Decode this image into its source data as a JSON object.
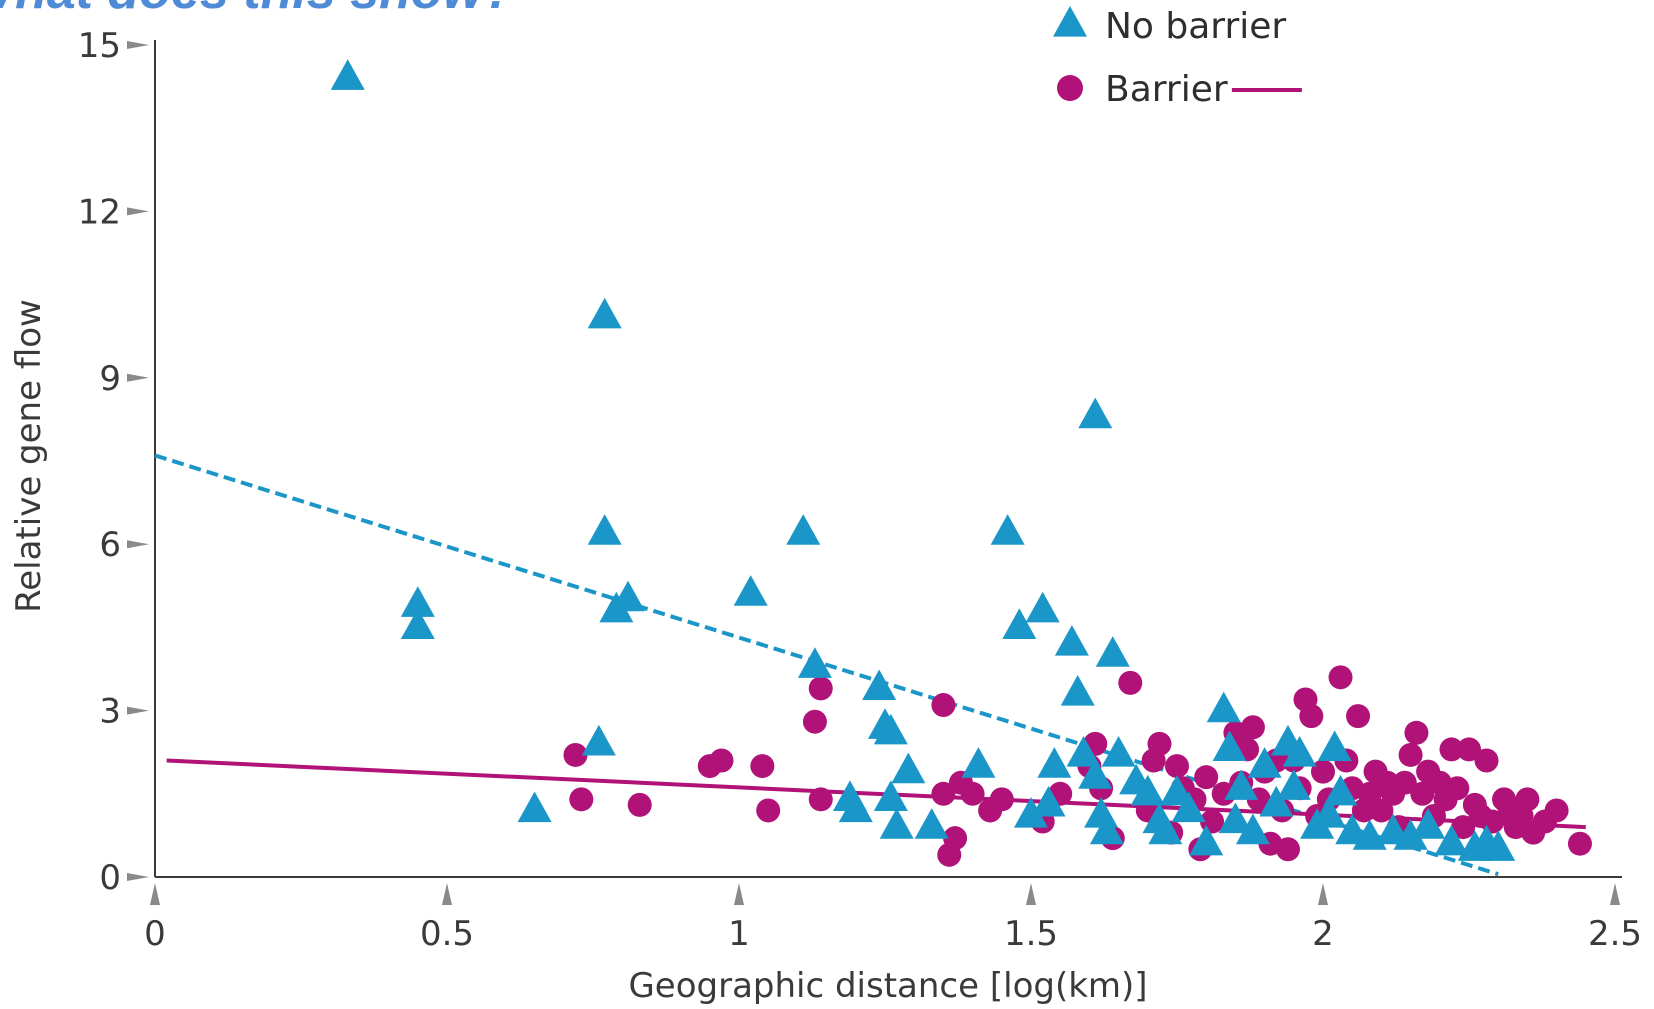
{
  "title": "What does this show?",
  "chart_data": {
    "type": "scatter",
    "xlabel": "Geographic distance [log(km)]",
    "ylabel": "Relative gene flow",
    "xlim": [
      0,
      2.5
    ],
    "ylim": [
      0,
      15
    ],
    "x_ticks": [
      "0",
      "0.5",
      "1",
      "1.5",
      "2",
      "2.5"
    ],
    "y_ticks": [
      "0",
      "3",
      "6",
      "9",
      "12",
      "15"
    ],
    "legend_position": "top-right",
    "series": [
      {
        "name": "No barrier",
        "marker": "triangle",
        "color": "#1a96c8",
        "trendline": {
          "style": "dashed",
          "x": [
            0,
            2.3
          ],
          "y": [
            7.6,
            0.05
          ]
        },
        "points": [
          [
            0.33,
            14.4
          ],
          [
            0.45,
            4.9
          ],
          [
            0.45,
            4.5
          ],
          [
            0.65,
            1.2
          ],
          [
            0.76,
            2.4
          ],
          [
            0.77,
            6.2
          ],
          [
            0.77,
            10.1
          ],
          [
            0.79,
            4.8
          ],
          [
            0.81,
            5.0
          ],
          [
            1.02,
            5.1
          ],
          [
            1.11,
            6.2
          ],
          [
            1.13,
            3.8
          ],
          [
            1.24,
            3.4
          ],
          [
            1.25,
            2.7
          ],
          [
            1.26,
            2.6
          ],
          [
            1.19,
            1.4
          ],
          [
            1.2,
            1.2
          ],
          [
            1.26,
            1.4
          ],
          [
            1.27,
            0.9
          ],
          [
            1.29,
            1.9
          ],
          [
            1.33,
            0.9
          ],
          [
            1.41,
            2.0
          ],
          [
            1.46,
            6.2
          ],
          [
            1.48,
            4.5
          ],
          [
            1.52,
            4.8
          ],
          [
            1.5,
            1.1
          ],
          [
            1.53,
            1.3
          ],
          [
            1.54,
            2.0
          ],
          [
            1.57,
            4.2
          ],
          [
            1.58,
            3.3
          ],
          [
            1.59,
            2.2
          ],
          [
            1.61,
            8.3
          ],
          [
            1.61,
            1.8
          ],
          [
            1.62,
            1.1
          ],
          [
            1.63,
            0.8
          ],
          [
            1.64,
            4.0
          ],
          [
            1.65,
            2.2
          ],
          [
            1.68,
            1.7
          ],
          [
            1.7,
            1.5
          ],
          [
            1.72,
            1.0
          ],
          [
            1.73,
            0.8
          ],
          [
            1.75,
            1.5
          ],
          [
            1.77,
            1.2
          ],
          [
            1.8,
            0.6
          ],
          [
            1.83,
            3.0
          ],
          [
            1.84,
            2.3
          ],
          [
            1.85,
            1.0
          ],
          [
            1.86,
            1.6
          ],
          [
            1.88,
            0.8
          ],
          [
            1.9,
            2.0
          ],
          [
            1.92,
            1.3
          ],
          [
            1.94,
            2.4
          ],
          [
            1.95,
            1.6
          ],
          [
            1.96,
            2.2
          ],
          [
            1.99,
            0.9
          ],
          [
            2.01,
            1.1
          ],
          [
            2.02,
            2.3
          ],
          [
            2.03,
            1.5
          ],
          [
            2.05,
            0.8
          ],
          [
            2.08,
            0.7
          ],
          [
            2.12,
            0.8
          ],
          [
            2.15,
            0.7
          ],
          [
            2.18,
            0.9
          ],
          [
            2.22,
            0.6
          ],
          [
            2.26,
            0.5
          ],
          [
            2.28,
            0.6
          ],
          [
            2.3,
            0.5
          ]
        ]
      },
      {
        "name": "Barrier",
        "marker": "circle",
        "color": "#b01277",
        "trendline": {
          "style": "solid",
          "x": [
            0.02,
            2.45
          ],
          "y": [
            2.1,
            0.9
          ]
        },
        "points": [
          [
            0.72,
            2.2
          ],
          [
            0.73,
            1.4
          ],
          [
            0.83,
            1.3
          ],
          [
            0.95,
            2.0
          ],
          [
            0.97,
            2.1
          ],
          [
            1.04,
            2.0
          ],
          [
            1.05,
            1.2
          ],
          [
            1.13,
            2.8
          ],
          [
            1.14,
            3.4
          ],
          [
            1.14,
            1.4
          ],
          [
            1.35,
            3.1
          ],
          [
            1.35,
            1.5
          ],
          [
            1.36,
            0.4
          ],
          [
            1.37,
            0.7
          ],
          [
            1.38,
            1.7
          ],
          [
            1.4,
            1.5
          ],
          [
            1.43,
            1.2
          ],
          [
            1.45,
            1.4
          ],
          [
            1.52,
            1.0
          ],
          [
            1.55,
            1.5
          ],
          [
            1.6,
            2.0
          ],
          [
            1.61,
            2.4
          ],
          [
            1.62,
            1.6
          ],
          [
            1.64,
            0.7
          ],
          [
            1.67,
            3.5
          ],
          [
            1.7,
            1.2
          ],
          [
            1.71,
            2.1
          ],
          [
            1.72,
            2.4
          ],
          [
            1.74,
            0.8
          ],
          [
            1.75,
            2.0
          ],
          [
            1.76,
            1.6
          ],
          [
            1.78,
            1.4
          ],
          [
            1.79,
            0.5
          ],
          [
            1.8,
            1.8
          ],
          [
            1.81,
            1.0
          ],
          [
            1.83,
            1.5
          ],
          [
            1.85,
            2.6
          ],
          [
            1.86,
            1.7
          ],
          [
            1.87,
            2.3
          ],
          [
            1.88,
            2.7
          ],
          [
            1.89,
            1.4
          ],
          [
            1.9,
            1.9
          ],
          [
            1.91,
            0.6
          ],
          [
            1.92,
            2.1
          ],
          [
            1.93,
            1.2
          ],
          [
            1.94,
            0.5
          ],
          [
            1.95,
            2.1
          ],
          [
            1.96,
            1.6
          ],
          [
            1.97,
            3.2
          ],
          [
            1.98,
            2.9
          ],
          [
            1.99,
            1.1
          ],
          [
            2.0,
            1.9
          ],
          [
            2.01,
            1.4
          ],
          [
            2.03,
            3.6
          ],
          [
            2.04,
            2.1
          ],
          [
            2.05,
            1.6
          ],
          [
            2.06,
            2.9
          ],
          [
            2.07,
            1.2
          ],
          [
            2.08,
            1.5
          ],
          [
            2.09,
            1.9
          ],
          [
            2.1,
            1.2
          ],
          [
            2.11,
            1.7
          ],
          [
            2.12,
            1.5
          ],
          [
            2.13,
            0.9
          ],
          [
            2.14,
            1.7
          ],
          [
            2.15,
            2.2
          ],
          [
            2.16,
            2.6
          ],
          [
            2.17,
            1.5
          ],
          [
            2.18,
            1.9
          ],
          [
            2.19,
            1.1
          ],
          [
            2.2,
            1.7
          ],
          [
            2.21,
            1.4
          ],
          [
            2.22,
            2.3
          ],
          [
            2.23,
            1.6
          ],
          [
            2.24,
            0.9
          ],
          [
            2.25,
            2.3
          ],
          [
            2.26,
            1.3
          ],
          [
            2.27,
            1.1
          ],
          [
            2.28,
            2.1
          ],
          [
            2.29,
            1.0
          ],
          [
            2.31,
            1.4
          ],
          [
            2.32,
            1.2
          ],
          [
            2.33,
            0.9
          ],
          [
            2.34,
            1.1
          ],
          [
            2.35,
            1.4
          ],
          [
            2.36,
            0.8
          ],
          [
            2.38,
            1.0
          ],
          [
            2.4,
            1.2
          ],
          [
            2.44,
            0.6
          ]
        ]
      }
    ]
  }
}
